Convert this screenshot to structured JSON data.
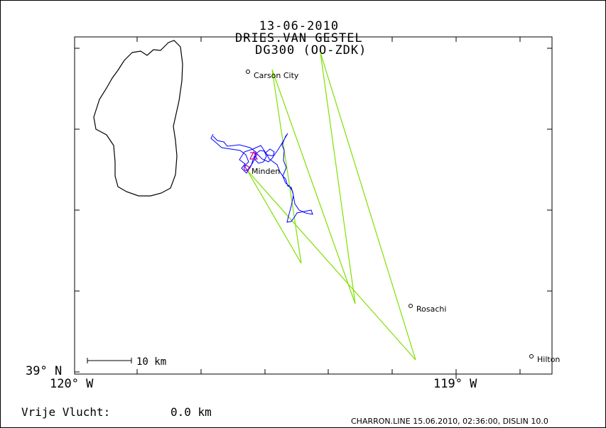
{
  "header": {
    "date": "13-06-2010",
    "pilot": "DRIES.VAN GESTEL",
    "glider": "DG300 (OO-ZDK)"
  },
  "axes": {
    "lat_label": "39° N",
    "lon_left_label": "120° W",
    "lon_right_label": "119° W"
  },
  "scale_bar": {
    "label": "10 km"
  },
  "places": [
    {
      "name": "Carson City"
    },
    {
      "name": "Minden"
    },
    {
      "name": "Rosachi"
    },
    {
      "name": "Hilton"
    }
  ],
  "stats": {
    "free_flight_label": "Vrije Vlucht:",
    "free_flight_value": "0.0 km"
  },
  "footer": "CHARRON.LINE 15.06.2010, 02:36:00, DISLIN 10.0",
  "colors": {
    "track": "#0000ff",
    "task": "#7fe000",
    "lake": "#000000",
    "marker": "#cc0099",
    "frame": "#000000"
  }
}
